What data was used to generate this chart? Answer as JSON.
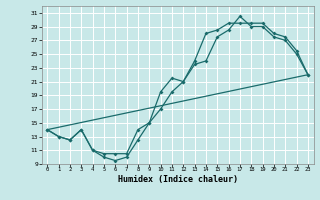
{
  "xlabel": "Humidex (Indice chaleur)",
  "bg_color": "#c8e8e8",
  "grid_color": "#ffffff",
  "line_color": "#1a6b6b",
  "ylim": [
    9,
    32
  ],
  "xlim": [
    -0.5,
    23.5
  ],
  "yticks": [
    9,
    11,
    13,
    15,
    17,
    19,
    21,
    23,
    25,
    27,
    29,
    31
  ],
  "xticks": [
    0,
    1,
    2,
    3,
    4,
    5,
    6,
    7,
    8,
    9,
    10,
    11,
    12,
    13,
    14,
    15,
    16,
    17,
    18,
    19,
    20,
    21,
    22,
    23
  ],
  "line1_x": [
    0,
    1,
    2,
    3,
    4,
    5,
    6,
    7,
    8,
    9,
    10,
    11,
    12,
    13,
    14,
    15,
    16,
    17,
    18,
    19,
    20,
    21,
    22,
    23
  ],
  "line1_y": [
    14,
    13,
    12.5,
    14,
    11,
    10,
    9.5,
    10,
    12.5,
    15,
    17,
    19.5,
    21,
    23.5,
    24,
    27.5,
    28.5,
    30.5,
    29,
    29,
    27.5,
    27,
    25,
    22
  ],
  "line2_x": [
    0,
    1,
    2,
    3,
    4,
    5,
    6,
    7,
    8,
    9,
    10,
    11,
    12,
    13,
    14,
    15,
    16,
    17,
    18,
    19,
    20,
    21,
    22,
    23
  ],
  "line2_y": [
    14,
    13,
    12.5,
    14,
    11,
    10.5,
    10.5,
    10.5,
    14,
    15,
    19.5,
    21.5,
    21,
    24,
    28,
    28.5,
    29.5,
    29.5,
    29.5,
    29.5,
    28,
    27.5,
    25.5,
    22
  ],
  "line3_x": [
    0,
    23
  ],
  "line3_y": [
    14,
    22
  ]
}
